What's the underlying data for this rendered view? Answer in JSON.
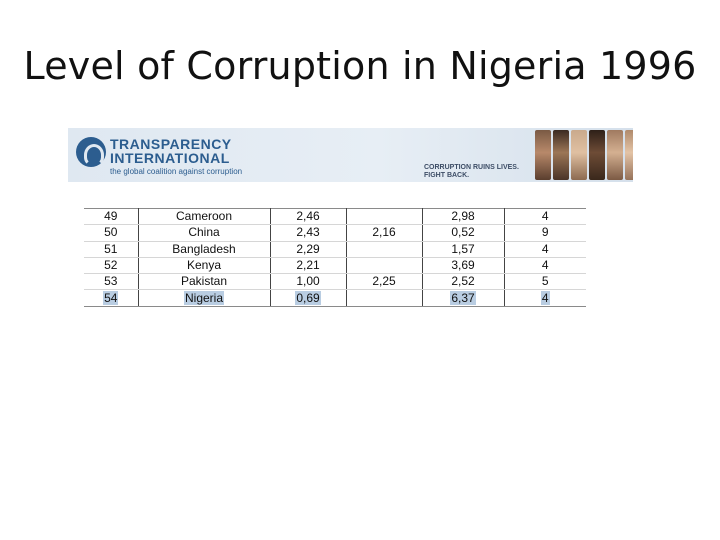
{
  "slide": {
    "title": "Level of Corruption in Nigeria 1996"
  },
  "banner": {
    "org_line1": "TRANSPARENCY",
    "org_line2": "INTERNATIONAL",
    "tagline": "the global coalition against corruption",
    "slogan_line1": "CORRUPTION RUINS LIVES.",
    "slogan_line2": "FIGHT BACK.",
    "logo_icon": "ti-logo-icon",
    "accent_color": "#2c5d8f"
  },
  "table": {
    "rows": [
      {
        "rank": "49",
        "country": "Cameroon",
        "score": "2,46",
        "score_2": "",
        "variance": "2,98",
        "surveys": "4",
        "highlight": false
      },
      {
        "rank": "50",
        "country": "China",
        "score": "2,43",
        "score_2": "2,16",
        "variance": "0,52",
        "surveys": "9",
        "highlight": false
      },
      {
        "rank": "51",
        "country": "Bangladesh",
        "score": "2,29",
        "score_2": "",
        "variance": "1,57",
        "surveys": "4",
        "highlight": false
      },
      {
        "rank": "52",
        "country": "Kenya",
        "score": "2,21",
        "score_2": "",
        "variance": "3,69",
        "surveys": "4",
        "highlight": false
      },
      {
        "rank": "53",
        "country": "Pakistan",
        "score": "1,00",
        "score_2": "2,25",
        "variance": "2,52",
        "surveys": "5",
        "highlight": false
      },
      {
        "rank": "54",
        "country": "Nigeria",
        "score": "0,69",
        "score_2": "",
        "variance": "6,37",
        "surveys": "4",
        "highlight": true
      }
    ],
    "highlight_color": "#b9cde2"
  }
}
